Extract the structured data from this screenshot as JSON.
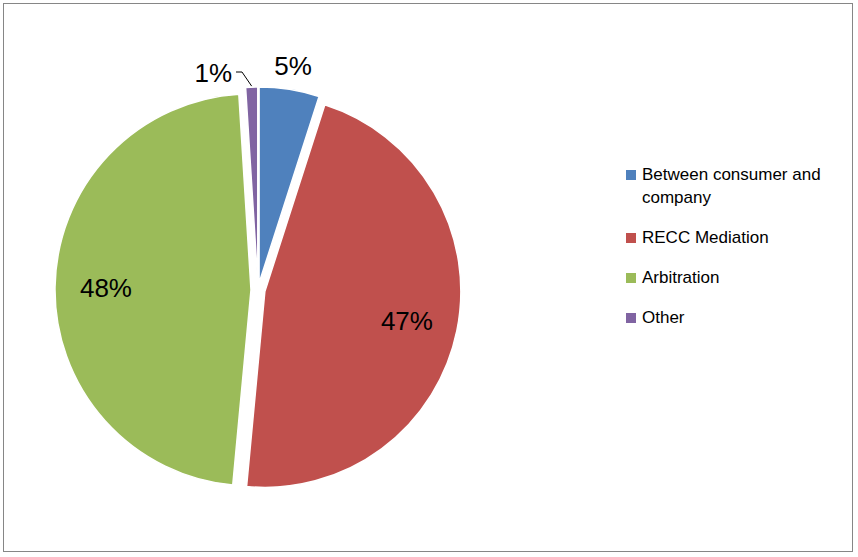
{
  "chart_data": {
    "type": "pie",
    "categories": [
      "Between consumer and company",
      "RECC Mediation",
      "Arbitration",
      "Other"
    ],
    "values": [
      5,
      47,
      48,
      1
    ],
    "value_labels": [
      "5%",
      "47%",
      "48%",
      "1%"
    ],
    "colors": [
      "#4f81bd",
      "#c0504d",
      "#9bbb59",
      "#8064a2"
    ],
    "data_labels": true,
    "legend": "right"
  }
}
